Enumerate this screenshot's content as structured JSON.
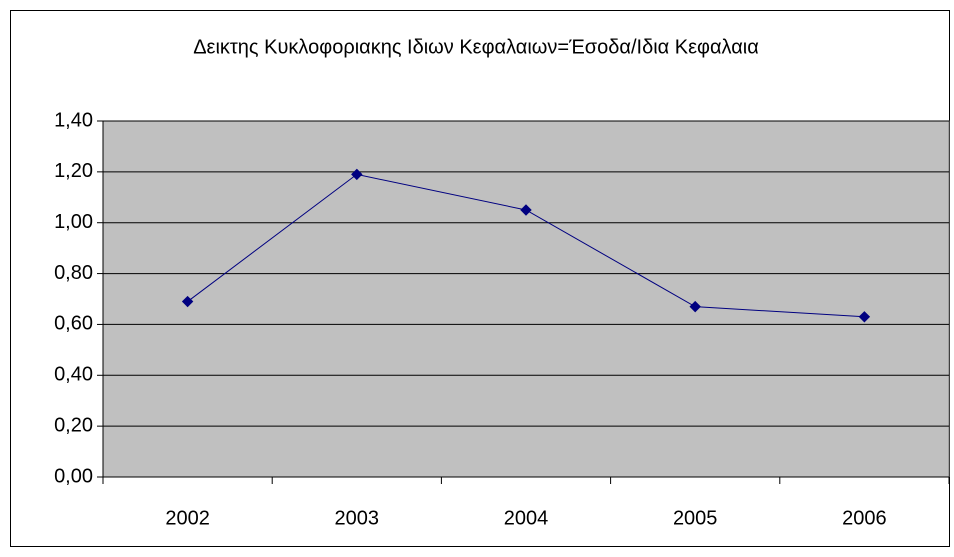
{
  "chart_data": {
    "type": "line",
    "title": "Δεικτης Κυκλοφοριακης Ιδιων Κεφαλαιων=Έσοδα/Ιδια Κεφαλαια",
    "categories": [
      "2002",
      "2003",
      "2004",
      "2005",
      "2006"
    ],
    "series": [
      {
        "color": "#000080",
        "values": [
          0.69,
          1.19,
          1.05,
          0.67,
          0.63
        ]
      }
    ],
    "ylim": [
      0,
      1.4
    ],
    "yticks": [
      {
        "value": 0,
        "label": "0,00"
      },
      {
        "value": 0.2,
        "label": "0,20"
      },
      {
        "value": 0.4,
        "label": "0,40"
      },
      {
        "value": 0.6,
        "label": "0,60"
      },
      {
        "value": 0.8,
        "label": "0,80"
      },
      {
        "value": 1.0,
        "label": "1,00"
      },
      {
        "value": 1.2,
        "label": "1,20"
      },
      {
        "value": 1.4,
        "label": "1,40"
      }
    ],
    "grid": true,
    "plot_background": "#c0c0c0"
  }
}
